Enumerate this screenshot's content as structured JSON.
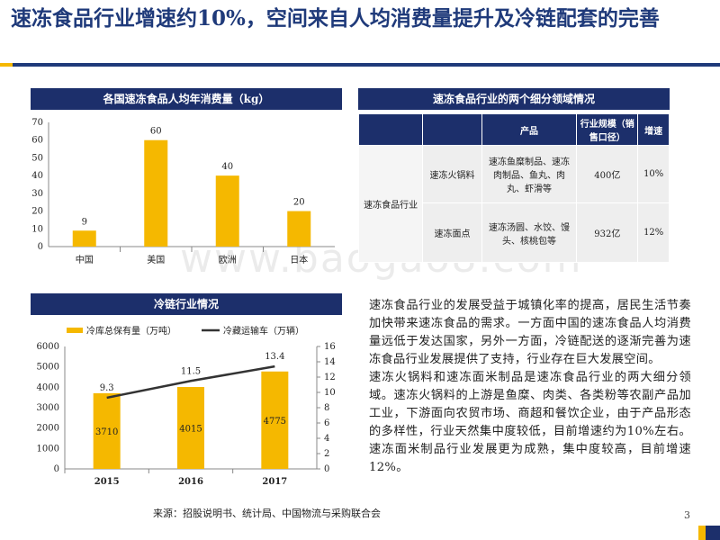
{
  "title": "速冻食品行业增速约10%，空间来自人均消费量提升及冷链配套的完善",
  "watermark": "www.baogao8.com",
  "chart_data": [
    {
      "type": "bar",
      "title": "各国速冻食品人均年消费量（kg）",
      "categories": [
        "中国",
        "美国",
        "欧洲",
        "日本"
      ],
      "values": [
        9,
        60,
        40,
        20
      ],
      "yticks": [
        0,
        10,
        20,
        30,
        40,
        50,
        60,
        70
      ],
      "ylim": [
        0,
        70
      ],
      "grid": false,
      "color": "#f5b800"
    },
    {
      "type": "bar",
      "title": "冷链行业情况",
      "categories": [
        "2015",
        "2016",
        "2017"
      ],
      "series": [
        {
          "name": "冷库总保有量（万吨）",
          "type": "bar",
          "axis": "left",
          "values": [
            3710,
            4015,
            4775
          ],
          "color": "#f5b800"
        },
        {
          "name": "冷藏运输车（万辆）",
          "type": "line",
          "axis": "right",
          "values": [
            9.3,
            11.5,
            13.4
          ],
          "color": "#333333"
        }
      ],
      "yticks_left": [
        0,
        1000,
        2000,
        3000,
        4000,
        5000,
        6000
      ],
      "ylim_left": [
        0,
        6000
      ],
      "yticks_right": [
        0,
        2,
        4,
        6,
        8,
        10,
        12,
        14,
        16
      ],
      "ylim_right": [
        0,
        16
      ],
      "legend": "top",
      "grid": false
    }
  ],
  "table": {
    "title": "速冻食品行业的两个细分领域情况",
    "headers": [
      "",
      "",
      "产品",
      "行业规模（销售口径）",
      "增速"
    ],
    "category": "速冻食品行业",
    "rows": [
      {
        "segment": "速冻火锅料",
        "products": "速冻鱼糜制品、速冻肉制品、鱼丸、肉丸、虾滑等",
        "scale": "400亿",
        "growth": "10%"
      },
      {
        "segment": "速冻面点",
        "products": "速冻汤圆、水饺、馒头、核桃包等",
        "scale": "932亿",
        "growth": "12%"
      }
    ]
  },
  "paragraphs": [
    "速冻食品行业的发展受益于城镇化率的提高，居民生活节奏加快带来速冻食品的需求。一方面中国的速冻食品人均消费量远低于发达国家，另外一方面，冷链配送的逐渐完善为速冻食品行业发展提供了支持，行业存在巨大发展空间。",
    "速冻火锅料和速冻面米制品是速冻食品行业的两大细分领域。速冻火锅料的上游是鱼糜、肉类、各类粉等农副产品加工业，下游面向农贸市场、商超和餐饮企业，由于产品形态的多样性，行业天然集中度较低，目前增速约为10%左右。速冻面米制品行业发展更为成熟，集中度较高，目前增速12%。"
  ],
  "source": "来源：招股说明书、统计局、中国物流与采购联合会",
  "page_number": "3",
  "colors": {
    "navy": "#1c2f6b",
    "title_blue": "#1f3a7a",
    "gold": "#f5b800"
  }
}
